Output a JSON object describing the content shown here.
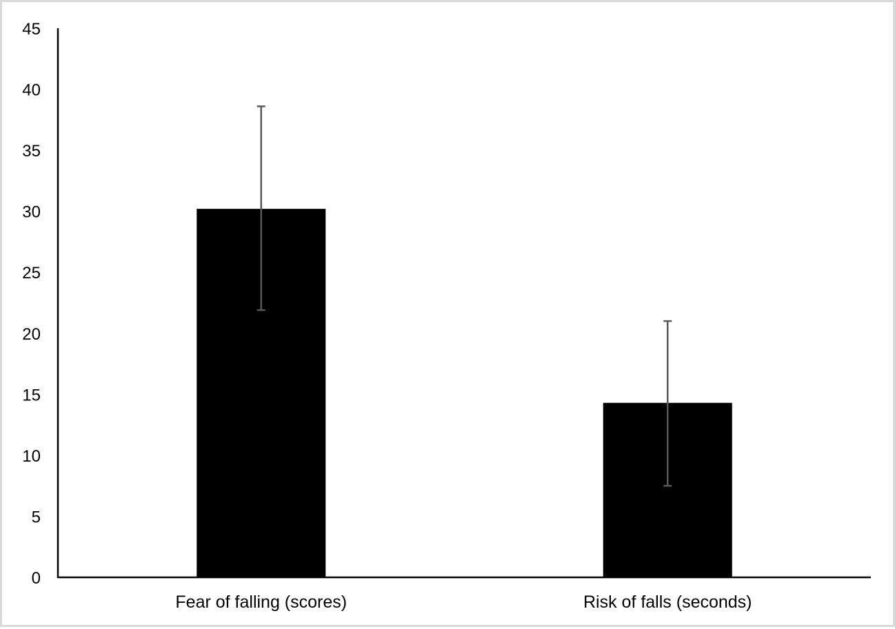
{
  "chart_data": {
    "type": "bar",
    "categories": [
      "Fear of falling (scores)",
      "Risk of falls (seconds)"
    ],
    "values": [
      30.2,
      14.3
    ],
    "error_bars": [
      {
        "low": 21.9,
        "high": 38.6
      },
      {
        "low": 7.5,
        "high": 21.0
      }
    ],
    "ylim": [
      0,
      45
    ],
    "yticks": [
      0,
      5,
      10,
      15,
      20,
      25,
      30,
      35,
      40,
      45
    ],
    "ytick_labels": [
      "0",
      "5",
      "10",
      "15",
      "20",
      "25",
      "30",
      "35",
      "40",
      "45"
    ],
    "title": "",
    "xlabel": "",
    "ylabel": "",
    "grid": false,
    "legend": "none",
    "bar_color": "#000000",
    "error_bar_color": "#595959",
    "axis_color": "#000000"
  }
}
